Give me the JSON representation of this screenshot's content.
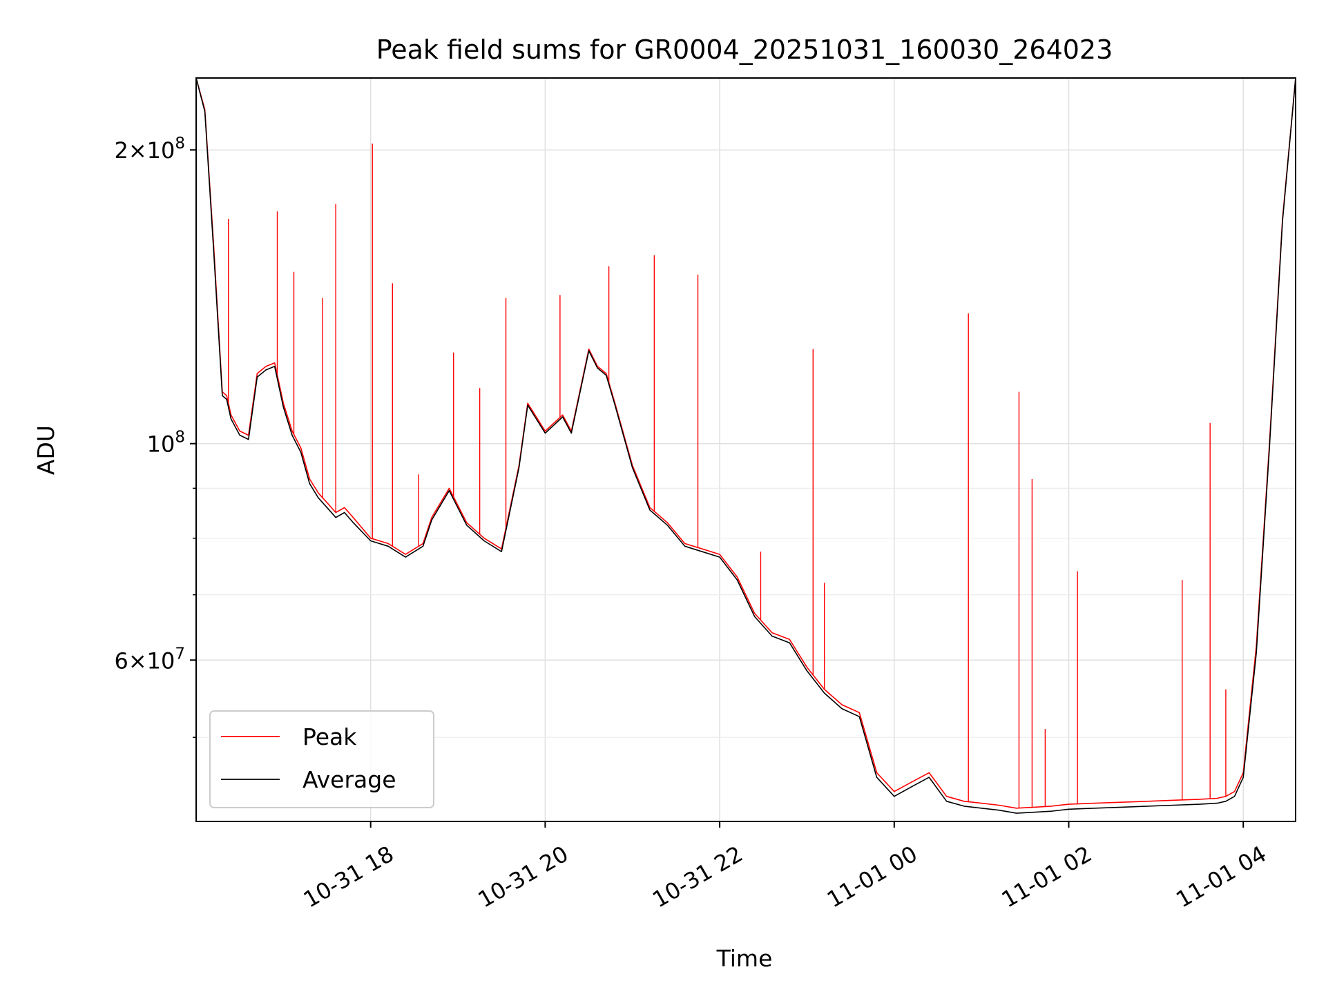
{
  "chart_data": {
    "type": "line",
    "title": "Peak field sums for GR0004_20251031_160030_264023",
    "xlabel": "Time",
    "ylabel": "ADU",
    "yscale": "log",
    "ylim": [
      41000000,
      237000000
    ],
    "xlim_hours": [
      16.0,
      28.6
    ],
    "grid": true,
    "legend_position": "lower-left",
    "x_ticks": [
      {
        "hour": 18,
        "label": "10-31 18"
      },
      {
        "hour": 20,
        "label": "10-31 20"
      },
      {
        "hour": 22,
        "label": "10-31 22"
      },
      {
        "hour": 24,
        "label": "11-01 00"
      },
      {
        "hour": 26,
        "label": "11-01 02"
      },
      {
        "hour": 28,
        "label": "11-01 04"
      }
    ],
    "y_major_ticks": [
      {
        "value": 60000000,
        "base": "6",
        "exp": "7"
      },
      {
        "value": 100000000,
        "base": "",
        "exp": "8"
      },
      {
        "value": 200000000,
        "base": "2",
        "exp": "8"
      }
    ],
    "y_minor_ticks": [
      50000000,
      70000000,
      80000000,
      90000000
    ],
    "series": [
      {
        "name": "Peak",
        "color": "#ff0000",
        "x": [
          16.0,
          16.1,
          16.2,
          16.3,
          16.35,
          16.4,
          16.5,
          16.6,
          16.7,
          16.8,
          16.9,
          17.0,
          17.1,
          17.2,
          17.3,
          17.4,
          17.5,
          17.6,
          17.7,
          17.8,
          18.0,
          18.2,
          18.4,
          18.6,
          18.7,
          18.9,
          19.1,
          19.3,
          19.5,
          19.7,
          19.8,
          20.0,
          20.2,
          20.3,
          20.5,
          20.6,
          20.7,
          20.8,
          21.0,
          21.2,
          21.4,
          21.6,
          21.8,
          22.0,
          22.2,
          22.4,
          22.6,
          22.8,
          23.0,
          23.2,
          23.4,
          23.6,
          23.8,
          24.0,
          24.2,
          24.4,
          24.6,
          24.8,
          25.0,
          25.2,
          25.4,
          25.6,
          25.8,
          26.0,
          26.3,
          26.6,
          26.9,
          27.2,
          27.5,
          27.7,
          27.8,
          27.9,
          28.0,
          28.15,
          28.3,
          28.45,
          28.6
        ],
        "y": [
          237000000,
          220000000,
          160000000,
          113000000,
          112000000,
          107000000,
          103000000,
          102000000,
          118000000,
          120000000,
          121000000,
          110000000,
          103000000,
          99000000,
          92000000,
          89000000,
          87000000,
          85000000,
          86000000,
          84000000,
          80000000,
          79000000,
          77000000,
          79000000,
          84000000,
          90000000,
          83000000,
          80000000,
          78000000,
          95000000,
          110000000,
          103000000,
          107000000,
          103000000,
          125000000,
          120000000,
          118000000,
          110000000,
          95000000,
          86000000,
          83000000,
          79000000,
          78000000,
          77000000,
          73000000,
          67000000,
          64000000,
          63000000,
          59000000,
          56000000,
          54000000,
          53000000,
          46000000,
          44000000,
          45000000,
          46000000,
          43500000,
          43000000,
          42800000,
          42600000,
          42300000,
          42400000,
          42500000,
          42700000,
          42800000,
          42900000,
          43000000,
          43100000,
          43200000,
          43300000,
          43500000,
          44000000,
          46000000,
          62000000,
          100000000,
          170000000,
          237000000
        ],
        "spikes": [
          {
            "x": 16.37,
            "y": 170000000
          },
          {
            "x": 16.93,
            "y": 173000000
          },
          {
            "x": 17.12,
            "y": 150000000
          },
          {
            "x": 17.45,
            "y": 141000000
          },
          {
            "x": 17.6,
            "y": 176000000
          },
          {
            "x": 18.02,
            "y": 203000000
          },
          {
            "x": 18.25,
            "y": 146000000
          },
          {
            "x": 18.55,
            "y": 93000000
          },
          {
            "x": 18.95,
            "y": 124000000
          },
          {
            "x": 19.25,
            "y": 114000000
          },
          {
            "x": 19.55,
            "y": 141000000
          },
          {
            "x": 20.17,
            "y": 142000000
          },
          {
            "x": 20.73,
            "y": 152000000
          },
          {
            "x": 21.25,
            "y": 156000000
          },
          {
            "x": 21.75,
            "y": 149000000
          },
          {
            "x": 22.47,
            "y": 77500000
          },
          {
            "x": 23.07,
            "y": 125000000
          },
          {
            "x": 23.2,
            "y": 72000000
          },
          {
            "x": 24.85,
            "y": 136000000
          },
          {
            "x": 25.43,
            "y": 113000000
          },
          {
            "x": 25.58,
            "y": 92000000
          },
          {
            "x": 25.73,
            "y": 51000000
          },
          {
            "x": 26.1,
            "y": 74000000
          },
          {
            "x": 27.3,
            "y": 72500000
          },
          {
            "x": 27.62,
            "y": 105000000
          },
          {
            "x": 27.8,
            "y": 56000000
          }
        ]
      },
      {
        "name": "Average",
        "color": "#000000",
        "x": [
          16.0,
          16.1,
          16.2,
          16.3,
          16.35,
          16.4,
          16.5,
          16.6,
          16.7,
          16.8,
          16.9,
          17.0,
          17.1,
          17.2,
          17.3,
          17.4,
          17.5,
          17.6,
          17.7,
          17.8,
          18.0,
          18.2,
          18.4,
          18.6,
          18.7,
          18.9,
          19.1,
          19.3,
          19.5,
          19.7,
          19.8,
          20.0,
          20.2,
          20.3,
          20.5,
          20.6,
          20.7,
          20.8,
          21.0,
          21.2,
          21.4,
          21.6,
          21.8,
          22.0,
          22.2,
          22.4,
          22.6,
          22.8,
          23.0,
          23.2,
          23.4,
          23.6,
          23.8,
          24.0,
          24.2,
          24.4,
          24.6,
          24.8,
          25.0,
          25.2,
          25.4,
          25.6,
          25.8,
          26.0,
          26.3,
          26.6,
          26.9,
          27.2,
          27.5,
          27.7,
          27.8,
          27.9,
          28.0,
          28.15,
          28.3,
          28.45,
          28.6
        ],
        "y": [
          237000000,
          219000000,
          158000000,
          112000000,
          111000000,
          106000000,
          102000000,
          101000000,
          117000000,
          119000000,
          120000000,
          109000000,
          102000000,
          98000000,
          91000000,
          88000000,
          86000000,
          84000000,
          85000000,
          83000000,
          79500000,
          78500000,
          76500000,
          78500000,
          83500000,
          89500000,
          82500000,
          79500000,
          77500000,
          94500000,
          109500000,
          102500000,
          106500000,
          102500000,
          124500000,
          119500000,
          117500000,
          109500000,
          94500000,
          85500000,
          82500000,
          78500000,
          77500000,
          76500000,
          72500000,
          66500000,
          63500000,
          62500000,
          58500000,
          55500000,
          53500000,
          52500000,
          45500000,
          43500000,
          44500000,
          45500000,
          43000000,
          42500000,
          42300000,
          42100000,
          41800000,
          41900000,
          42000000,
          42200000,
          42300000,
          42400000,
          42500000,
          42600000,
          42700000,
          42800000,
          43000000,
          43500000,
          45500000,
          61000000,
          99000000,
          169000000,
          237000000
        ]
      }
    ]
  }
}
